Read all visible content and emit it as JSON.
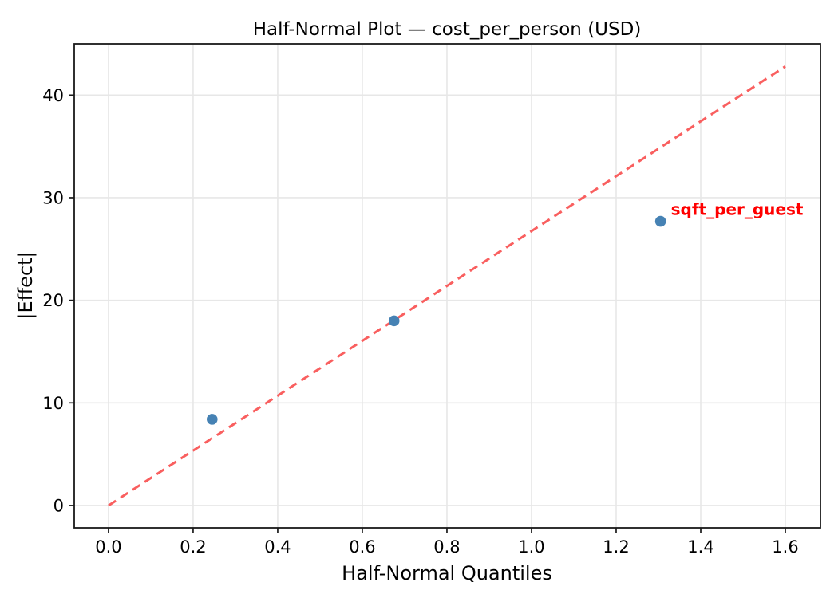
{
  "chart_data": {
    "type": "scatter",
    "title": "Half-Normal Plot — cost_per_person (USD)",
    "xlabel": "Half-Normal Quantiles",
    "ylabel": "|Effect|",
    "xlim": [
      -0.081,
      1.683
    ],
    "ylim": [
      -2.18,
      45.0
    ],
    "xtick_values": [
      0.0,
      0.2,
      0.4,
      0.6,
      0.8,
      1.0,
      1.2,
      1.4,
      1.6
    ],
    "xtick_labels": [
      "0.0",
      "0.2",
      "0.4",
      "0.6",
      "0.8",
      "1.0",
      "1.2",
      "1.4",
      "1.6"
    ],
    "ytick_values": [
      0,
      10,
      20,
      30,
      40
    ],
    "ytick_labels": [
      "0",
      "10",
      "20",
      "30",
      "40"
    ],
    "grid": true,
    "legend": null,
    "points": [
      {
        "x": 0.245,
        "y": 8.4,
        "label": ""
      },
      {
        "x": 0.675,
        "y": 18.0,
        "label": ""
      },
      {
        "x": 1.305,
        "y": 27.7,
        "label": "sqft_per_guest"
      }
    ],
    "reference_line": {
      "style": "dashed",
      "x": [
        0.0,
        1.6
      ],
      "y": [
        0.0,
        42.8
      ]
    },
    "colors": {
      "point": "#4682b4",
      "reference_line": "#f95f5f",
      "annotation": "#ff0000",
      "grid": "#e7e7e7",
      "spine": "#1a1a1a",
      "text": "#000000"
    }
  }
}
